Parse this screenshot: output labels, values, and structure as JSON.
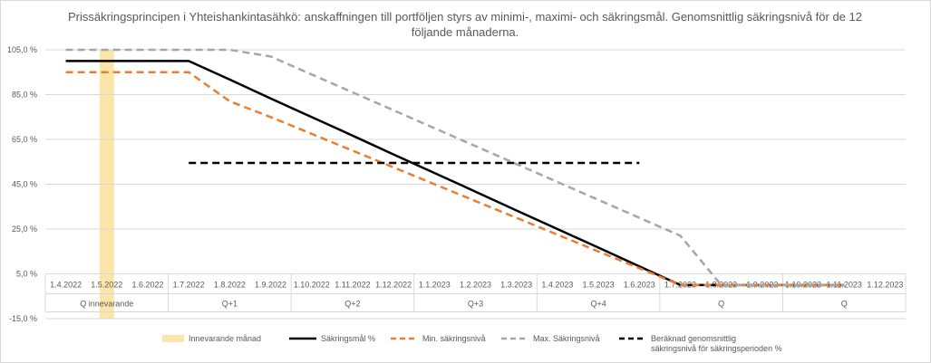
{
  "chart_data": {
    "type": "line",
    "title": "Prissäkringsprincipen i Yhteishankintasähkö: anskaffningen till portföljen styrs av minimi-, maximi- och säkringsmål. Genomsnittlig säkringsnivå för de 12",
    "title_line2": "följande månaderna.",
    "ylim": [
      -15,
      105
    ],
    "y_ticks": [
      -15,
      5,
      25,
      45,
      65,
      85,
      105
    ],
    "y_tick_labels": [
      "-15,0 %",
      "5,0 %",
      "25,0 %",
      "45,0 %",
      "65,0 %",
      "85,0 %",
      "105,0 %"
    ],
    "grid": true,
    "legend_position": "bottom",
    "categories": [
      "1.4.2022",
      "1.5.2022",
      "1.6.2022",
      "1.7.2022",
      "1.8.2022",
      "1.9.2022",
      "1.10.2022",
      "1.11.2022",
      "1.12.2022",
      "1.1.2023",
      "1.2.2023",
      "1.3.2023",
      "1.4.2023",
      "1.5.2023",
      "1.6.2023",
      "1.7.2023",
      "1.8.2023",
      "1.9.2023",
      "1.10.2023",
      "1.11.2023",
      "1.12.2023"
    ],
    "quarter_groups": [
      {
        "label": "Q innevarande",
        "span": 3
      },
      {
        "label": "Q+1",
        "span": 3
      },
      {
        "label": "Q+2",
        "span": 3
      },
      {
        "label": "Q+3",
        "span": 3
      },
      {
        "label": "Q+4",
        "span": 3
      },
      {
        "label": "Q",
        "span": 3
      },
      {
        "label": "Q",
        "span": 3
      }
    ],
    "current_month_index": 1,
    "series": [
      {
        "name": "Innevarande månad",
        "kind": "band",
        "color": "#fbe5a8"
      },
      {
        "name": "Säkringsmål %",
        "kind": "line",
        "dash": "solid",
        "color": "#000000",
        "values": [
          100,
          100,
          100,
          100,
          91.7,
          83.3,
          75,
          66.7,
          58.3,
          50,
          41.7,
          33.3,
          25,
          16.7,
          8.3,
          0,
          0,
          0,
          0,
          0,
          null
        ]
      },
      {
        "name": "Min. säkringsnivå",
        "kind": "line",
        "dash": "dashed",
        "color": "#ed7d31",
        "values": [
          95,
          95,
          95,
          95,
          82,
          75,
          67.5,
          60,
          52.5,
          45,
          37.5,
          30,
          22.5,
          15,
          7.5,
          0,
          0,
          0,
          0,
          0,
          null
        ]
      },
      {
        "name": "Max. Säkringsnivå",
        "kind": "line",
        "dash": "dashed",
        "color": "#a6a6a6",
        "values": [
          105,
          105,
          105,
          105,
          105,
          102,
          94,
          86,
          78,
          70,
          62,
          54,
          46,
          38,
          30,
          22,
          0,
          0,
          0,
          0,
          null
        ]
      },
      {
        "name": "Beräknad genomsnittlig säkringsnivå för säkringsperioden %",
        "legend_lines": [
          "Beräknad genomsnittlig",
          "säkringsnivå för säkringsperioden %"
        ],
        "kind": "line",
        "dash": "dashed",
        "color": "#000000",
        "values": [
          null,
          null,
          null,
          54.5,
          54.5,
          54.5,
          54.5,
          54.5,
          54.5,
          54.5,
          54.5,
          54.5,
          54.5,
          54.5,
          54.5,
          null,
          null,
          null,
          null,
          null,
          null
        ]
      }
    ]
  }
}
